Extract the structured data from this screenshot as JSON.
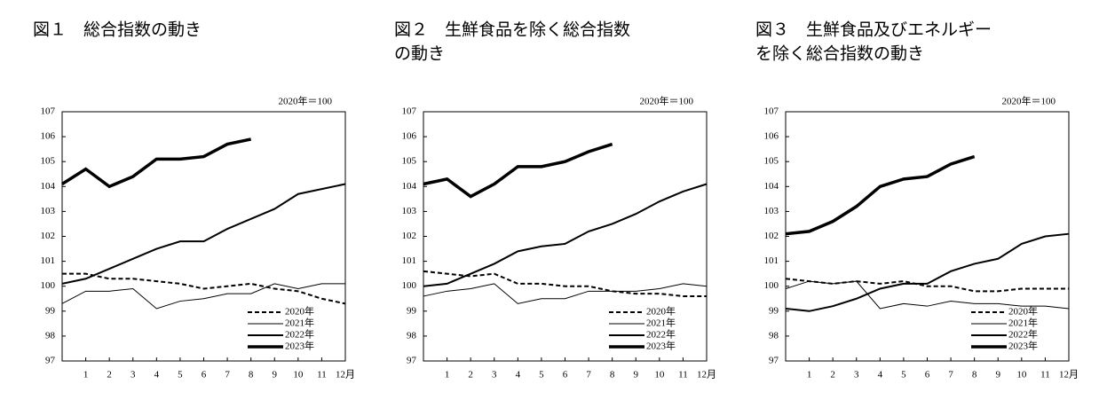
{
  "chart_data": [
    {
      "type": "line",
      "title": [
        "図１　総合指数の動き"
      ],
      "annotation": "2020年＝100",
      "categories": [
        null,
        "1",
        "2",
        "3",
        "4",
        "5",
        "6",
        "7",
        "8",
        "9",
        "10",
        "11",
        "12月"
      ],
      "ylim": [
        97,
        107
      ],
      "yticks": [
        97,
        98,
        99,
        100,
        101,
        102,
        103,
        104,
        105,
        106,
        107
      ],
      "series": [
        {
          "name": "2020年",
          "color": "#000000",
          "line_style": "dashed",
          "line_weight": "medium",
          "values": [
            100.5,
            100.5,
            100.3,
            100.3,
            100.2,
            100.1,
            99.9,
            100.0,
            100.1,
            99.9,
            99.8,
            99.5,
            99.3
          ]
        },
        {
          "name": "2021年",
          "color": "#000000",
          "line_style": "solid",
          "line_weight": "thin",
          "values": [
            99.3,
            99.8,
            99.8,
            99.9,
            99.1,
            99.4,
            99.5,
            99.7,
            99.7,
            100.1,
            99.9,
            100.1,
            100.1
          ]
        },
        {
          "name": "2022年",
          "color": "#000000",
          "line_style": "solid",
          "line_weight": "medium",
          "values": [
            100.1,
            100.3,
            100.7,
            101.1,
            101.5,
            101.8,
            101.8,
            102.3,
            102.7,
            103.1,
            103.7,
            103.9,
            104.1
          ]
        },
        {
          "name": "2023年",
          "color": "#000000",
          "line_style": "solid",
          "line_weight": "thick",
          "values": [
            104.1,
            104.7,
            104.0,
            104.4,
            105.1,
            105.1,
            105.2,
            105.7,
            105.9,
            null,
            null,
            null,
            null
          ]
        }
      ]
    },
    {
      "type": "line",
      "title": [
        "図２　生鮮食品を除く総合指数",
        "の動き"
      ],
      "annotation": "2020年＝100",
      "categories": [
        null,
        "1",
        "2",
        "3",
        "4",
        "5",
        "6",
        "7",
        "8",
        "9",
        "10",
        "11",
        "12月"
      ],
      "ylim": [
        97,
        107
      ],
      "yticks": [
        97,
        98,
        99,
        100,
        101,
        102,
        103,
        104,
        105,
        106,
        107
      ],
      "series": [
        {
          "name": "2020年",
          "color": "#000000",
          "line_style": "dashed",
          "line_weight": "medium",
          "values": [
            100.6,
            100.5,
            100.4,
            100.5,
            100.1,
            100.1,
            100.0,
            100.0,
            99.8,
            99.7,
            99.7,
            99.6,
            99.6
          ]
        },
        {
          "name": "2021年",
          "color": "#000000",
          "line_style": "solid",
          "line_weight": "thin",
          "values": [
            99.6,
            99.8,
            99.9,
            100.1,
            99.3,
            99.5,
            99.5,
            99.8,
            99.8,
            99.8,
            99.9,
            100.1,
            100.0
          ]
        },
        {
          "name": "2022年",
          "color": "#000000",
          "line_style": "solid",
          "line_weight": "medium",
          "values": [
            100.0,
            100.1,
            100.5,
            100.9,
            101.4,
            101.6,
            101.7,
            102.2,
            102.5,
            102.9,
            103.4,
            103.8,
            104.1
          ]
        },
        {
          "name": "2023年",
          "color": "#000000",
          "line_style": "solid",
          "line_weight": "thick",
          "values": [
            104.1,
            104.3,
            103.6,
            104.1,
            104.8,
            104.8,
            105.0,
            105.4,
            105.7,
            null,
            null,
            null,
            null
          ]
        }
      ]
    },
    {
      "type": "line",
      "title": [
        "図３　生鮮食品及びエネルギー",
        "を除く総合指数の動き"
      ],
      "annotation": "2020年＝100",
      "categories": [
        null,
        "1",
        "2",
        "3",
        "4",
        "5",
        "6",
        "7",
        "8",
        "9",
        "10",
        "11",
        "12月"
      ],
      "ylim": [
        97,
        107
      ],
      "yticks": [
        97,
        98,
        99,
        100,
        101,
        102,
        103,
        104,
        105,
        106,
        107
      ],
      "series": [
        {
          "name": "2020年",
          "color": "#000000",
          "line_style": "dashed",
          "line_weight": "medium",
          "values": [
            100.3,
            100.2,
            100.1,
            100.2,
            100.1,
            100.2,
            100.0,
            100.0,
            99.8,
            99.8,
            99.9,
            99.9,
            99.9
          ]
        },
        {
          "name": "2021年",
          "color": "#000000",
          "line_style": "solid",
          "line_weight": "thin",
          "values": [
            99.9,
            100.2,
            100.1,
            100.2,
            99.1,
            99.3,
            99.2,
            99.4,
            99.3,
            99.3,
            99.2,
            99.2,
            99.1
          ]
        },
        {
          "name": "2022年",
          "color": "#000000",
          "line_style": "solid",
          "line_weight": "medium",
          "values": [
            99.1,
            99.0,
            99.2,
            99.5,
            99.9,
            100.1,
            100.1,
            100.6,
            100.9,
            101.1,
            101.7,
            102.0,
            102.1
          ]
        },
        {
          "name": "2023年",
          "color": "#000000",
          "line_style": "solid",
          "line_weight": "thick",
          "values": [
            102.1,
            102.2,
            102.6,
            103.2,
            104.0,
            104.3,
            104.4,
            104.9,
            105.2,
            null,
            null,
            null,
            null
          ]
        }
      ]
    }
  ]
}
